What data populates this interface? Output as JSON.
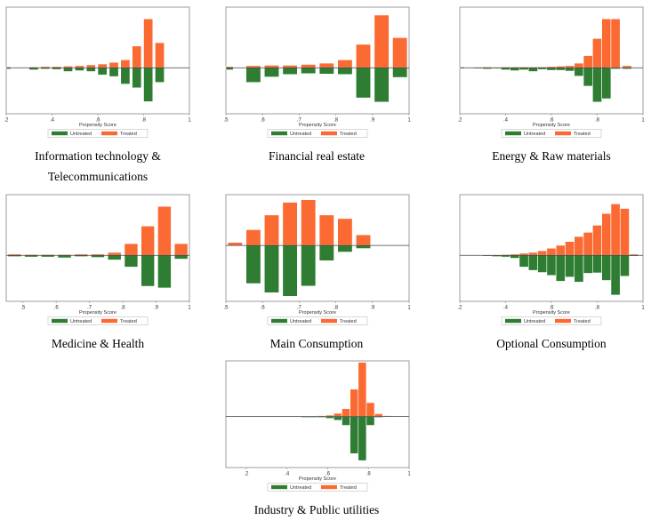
{
  "colors": {
    "treated": "#fb6a33",
    "untreated": "#2e7d32",
    "frame": "#9e9e9e",
    "baseline": "#404040"
  },
  "chart_data": [
    {
      "type": "bar",
      "caption_lines": [
        "Information technology &",
        "Telecommunications"
      ],
      "xlabel": "Propensity Score",
      "xlim": [
        0.2,
        1.0
      ],
      "xticks": [
        0.2,
        0.4,
        0.6,
        0.8,
        1.0
      ],
      "xtick_labels": [
        ".2",
        ".4",
        ".6",
        ".8",
        "1"
      ],
      "ylim": [
        -1.1,
        1.45
      ],
      "bin_width": 0.04,
      "grid": false,
      "legend": {
        "position": "bottom",
        "entries": [
          "Untreated",
          "Treated"
        ]
      },
      "series": [
        {
          "name": "Treated",
          "x": [
            0.2,
            0.32,
            0.37,
            0.42,
            0.47,
            0.52,
            0.57,
            0.62,
            0.67,
            0.72,
            0.77,
            0.82,
            0.87
          ],
          "values": [
            0.02,
            0.02,
            0.03,
            0.03,
            0.04,
            0.05,
            0.07,
            0.09,
            0.13,
            0.19,
            0.52,
            1.17,
            0.6
          ]
        },
        {
          "name": "Untreated",
          "x": [
            0.2,
            0.32,
            0.37,
            0.42,
            0.47,
            0.52,
            0.57,
            0.62,
            0.67,
            0.72,
            0.77,
            0.82,
            0.87
          ],
          "values": [
            0.03,
            0.05,
            0.03,
            0.04,
            0.09,
            0.07,
            0.09,
            0.17,
            0.21,
            0.39,
            0.48,
            0.81,
            0.35
          ]
        }
      ]
    },
    {
      "type": "bar",
      "caption_lines": [
        "Financial real estate"
      ],
      "xlabel": "Propensity Score",
      "xlim": [
        0.5,
        1.0
      ],
      "xticks": [
        0.5,
        0.6,
        0.7,
        0.8,
        0.9,
        1.0
      ],
      "xtick_labels": [
        ".5",
        ".6",
        ".7",
        ".8",
        ".9",
        "1"
      ],
      "ylim": [
        -1.1,
        1.45
      ],
      "bin_width": 0.04,
      "grid": false,
      "legend": {
        "position": "bottom",
        "entries": [
          "Untreated",
          "Treated"
        ]
      },
      "series": [
        {
          "name": "Treated",
          "x": [
            0.5,
            0.575,
            0.625,
            0.675,
            0.725,
            0.775,
            0.825,
            0.875,
            0.925,
            0.975
          ],
          "values": [
            0.03,
            0.05,
            0.06,
            0.06,
            0.08,
            0.11,
            0.19,
            0.56,
            1.26,
            0.72
          ]
        },
        {
          "name": "Untreated",
          "x": [
            0.5,
            0.575,
            0.625,
            0.675,
            0.725,
            0.775,
            0.825,
            0.875,
            0.925,
            0.975
          ],
          "values": [
            0.05,
            0.35,
            0.22,
            0.16,
            0.14,
            0.15,
            0.16,
            0.72,
            0.82,
            0.23
          ]
        }
      ]
    },
    {
      "type": "bar",
      "caption_lines": [
        "Energy & Raw materials"
      ],
      "xlabel": "Propensity Score",
      "xlim": [
        0.2,
        1.0
      ],
      "xticks": [
        0.2,
        0.4,
        0.6,
        0.8,
        1.0
      ],
      "xtick_labels": [
        ".2",
        ".4",
        ".6",
        ".8",
        "1"
      ],
      "ylim": [
        -1.1,
        1.45
      ],
      "bin_width": 0.04,
      "grid": false,
      "legend": {
        "position": "bottom",
        "entries": [
          "Untreated",
          "Treated"
        ]
      },
      "series": [
        {
          "name": "Treated",
          "x": [
            0.2,
            0.28,
            0.32,
            0.36,
            0.4,
            0.44,
            0.48,
            0.52,
            0.56,
            0.6,
            0.64,
            0.68,
            0.72,
            0.76,
            0.8,
            0.84,
            0.88,
            0.93
          ],
          "values": [
            0.02,
            0.01,
            0.02,
            0.01,
            0.02,
            0.02,
            0.02,
            0.02,
            0.02,
            0.03,
            0.04,
            0.05,
            0.11,
            0.29,
            0.7,
            1.17,
            1.17,
            0.05
          ]
        },
        {
          "name": "Untreated",
          "x": [
            0.2,
            0.28,
            0.32,
            0.36,
            0.4,
            0.44,
            0.48,
            0.52,
            0.56,
            0.6,
            0.64,
            0.68,
            0.72,
            0.76,
            0.8,
            0.84,
            0.88,
            0.93
          ],
          "values": [
            0.02,
            0.02,
            0.03,
            0.02,
            0.05,
            0.07,
            0.05,
            0.09,
            0.04,
            0.06,
            0.06,
            0.08,
            0.2,
            0.44,
            0.82,
            0.74,
            0.03,
            0.03
          ]
        }
      ]
    },
    {
      "type": "bar",
      "caption_lines": [
        "Medicine & Health"
      ],
      "xlabel": "Propensity Score",
      "xlim": [
        0.45,
        1.0
      ],
      "xticks": [
        0.5,
        0.6,
        0.7,
        0.8,
        0.9,
        1.0
      ],
      "xtick_labels": [
        ".5",
        ".6",
        ".7",
        ".8",
        ".9",
        "1"
      ],
      "ylim": [
        -1.1,
        1.45
      ],
      "bin_width": 0.04,
      "grid": false,
      "legend": {
        "position": "bottom",
        "entries": [
          "Untreated",
          "Treated"
        ]
      },
      "series": [
        {
          "name": "Treated",
          "x": [
            0.475,
            0.525,
            0.575,
            0.625,
            0.675,
            0.725,
            0.775,
            0.825,
            0.875,
            0.925,
            0.975
          ],
          "values": [
            0.03,
            0.02,
            0.02,
            0.02,
            0.03,
            0.03,
            0.07,
            0.28,
            0.7,
            1.17,
            0.28
          ]
        },
        {
          "name": "Untreated",
          "x": [
            0.475,
            0.525,
            0.575,
            0.625,
            0.675,
            0.725,
            0.775,
            0.825,
            0.875,
            0.925,
            0.975
          ],
          "values": [
            0.03,
            0.04,
            0.04,
            0.06,
            0.03,
            0.05,
            0.11,
            0.28,
            0.74,
            0.78,
            0.09
          ]
        }
      ]
    },
    {
      "type": "bar",
      "caption_lines": [
        "Main Consumption"
      ],
      "xlabel": "Propensity Score",
      "xlim": [
        0.5,
        1.0
      ],
      "xticks": [
        0.5,
        0.6,
        0.7,
        0.8,
        0.9,
        1.0
      ],
      "xtick_labels": [
        ".5",
        ".6",
        ".7",
        ".8",
        ".9",
        "1"
      ],
      "ylim": [
        -1.1,
        1.0
      ],
      "bin_width": 0.04,
      "grid": false,
      "legend": {
        "position": "bottom",
        "entries": [
          "Untreated",
          "Treated"
        ]
      },
      "series": [
        {
          "name": "Treated",
          "x": [
            0.525,
            0.575,
            0.625,
            0.675,
            0.725,
            0.775,
            0.825,
            0.875,
            0.925,
            0.975
          ],
          "values": [
            0.06,
            0.31,
            0.6,
            0.85,
            0.9,
            0.6,
            0.53,
            0.21,
            0.0,
            0.0
          ]
        },
        {
          "name": "Untreated",
          "x": [
            0.525,
            0.575,
            0.625,
            0.675,
            0.725,
            0.775,
            0.825,
            0.875,
            0.925,
            0.975
          ],
          "values": [
            0.0,
            0.75,
            0.93,
            1.0,
            0.8,
            0.3,
            0.13,
            0.06,
            0.0,
            0.0
          ]
        }
      ]
    },
    {
      "type": "bar",
      "caption_lines": [
        "Optional Consumption"
      ],
      "xlabel": "Propensity Score",
      "xlim": [
        0.2,
        1.0
      ],
      "xticks": [
        0.2,
        0.4,
        0.6,
        0.8,
        1.0
      ],
      "xtick_labels": [
        ".2",
        ".4",
        ".6",
        ".8",
        "1"
      ],
      "ylim": [
        -1.1,
        1.45
      ],
      "bin_width": 0.04,
      "grid": false,
      "legend": {
        "position": "bottom",
        "entries": [
          "Untreated",
          "Treated"
        ]
      },
      "series": [
        {
          "name": "Treated",
          "x": [
            0.32,
            0.36,
            0.4,
            0.44,
            0.48,
            0.52,
            0.56,
            0.6,
            0.64,
            0.68,
            0.72,
            0.76,
            0.8,
            0.84,
            0.88,
            0.92,
            0.96
          ],
          "values": [
            0.01,
            0.01,
            0.02,
            0.03,
            0.05,
            0.07,
            0.11,
            0.17,
            0.24,
            0.33,
            0.45,
            0.55,
            0.72,
            1.0,
            1.23,
            1.12,
            0.03
          ]
        },
        {
          "name": "Untreated",
          "x": [
            0.32,
            0.36,
            0.4,
            0.44,
            0.48,
            0.52,
            0.56,
            0.6,
            0.64,
            0.68,
            0.72,
            0.76,
            0.8,
            0.84,
            0.88,
            0.92,
            0.96
          ],
          "values": [
            0.02,
            0.03,
            0.04,
            0.07,
            0.28,
            0.36,
            0.41,
            0.48,
            0.62,
            0.52,
            0.64,
            0.43,
            0.42,
            0.6,
            0.95,
            0.5,
            0.02
          ]
        }
      ]
    },
    {
      "type": "bar",
      "caption_lines": [
        "Industry & Public utilities"
      ],
      "xlabel": "Propensity Score",
      "xlim": [
        0.1,
        1.0
      ],
      "xticks": [
        0.2,
        0.4,
        0.6,
        0.8,
        1.0
      ],
      "xtick_labels": [
        ".2",
        ".4",
        ".6",
        ".8",
        "1"
      ],
      "ylim": [
        -1.1,
        1.2
      ],
      "bin_width": 0.04,
      "grid": false,
      "legend": {
        "position": "bottom",
        "entries": [
          "Untreated",
          "Treated"
        ]
      },
      "series": [
        {
          "name": "Treated",
          "x": [
            0.13,
            0.17,
            0.21,
            0.25,
            0.29,
            0.33,
            0.37,
            0.41,
            0.45,
            0.49,
            0.53,
            0.57,
            0.61,
            0.65,
            0.69,
            0.73,
            0.77,
            0.81,
            0.85,
            0.89
          ],
          "values": [
            0.01,
            0.01,
            0.01,
            0.01,
            0.01,
            0.01,
            0.01,
            0.01,
            0.01,
            0.01,
            0.01,
            0.02,
            0.03,
            0.07,
            0.17,
            0.59,
            1.17,
            0.3,
            0.06,
            0.02
          ]
        },
        {
          "name": "Untreated",
          "x": [
            0.13,
            0.17,
            0.21,
            0.25,
            0.29,
            0.33,
            0.37,
            0.41,
            0.45,
            0.49,
            0.53,
            0.57,
            0.61,
            0.65,
            0.69,
            0.73,
            0.77,
            0.81,
            0.85,
            0.89
          ],
          "values": [
            0.01,
            0.01,
            0.01,
            0.01,
            0.01,
            0.01,
            0.01,
            0.01,
            0.01,
            0.02,
            0.02,
            0.02,
            0.04,
            0.08,
            0.19,
            0.8,
            0.95,
            0.19,
            0.02,
            0.01
          ]
        }
      ]
    }
  ]
}
